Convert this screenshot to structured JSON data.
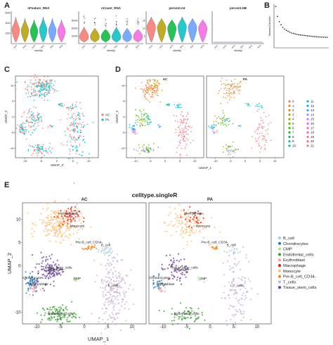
{
  "figure": {
    "panel_letters": [
      "A",
      "B",
      "C",
      "D",
      "E"
    ]
  },
  "chart_data": [
    {
      "panel": "A",
      "type": "violin",
      "subplots": [
        {
          "title": "nFeature_RNA",
          "xlabel": "Identity",
          "ylim": [
            0,
            6000
          ],
          "yticks": [
            "2000",
            "4000",
            "6000"
          ]
        },
        {
          "title": "nCount_RNA",
          "xlabel": "Identity",
          "ylim": [
            0,
            40000
          ],
          "yticks": [
            "10000",
            "20000",
            "30000"
          ]
        },
        {
          "title": "percent.mt",
          "xlabel": "Identity",
          "ylim": [
            0,
            20
          ],
          "yticks": [
            "5",
            "10",
            "15"
          ]
        },
        {
          "title": "percent.HB",
          "xlabel": "Identity",
          "ylim": [
            0,
            1
          ],
          "yticks": []
        }
      ],
      "categories": [
        "AC1",
        "AC2",
        "AC3",
        "PA1",
        "PA2",
        "PA3"
      ],
      "colors": [
        "#f8766d",
        "#b79f00",
        "#00ba38",
        "#00bfc4",
        "#619cff",
        "#f564e3"
      ]
    },
    {
      "panel": "B",
      "type": "scatter",
      "ylabel": "Standard Deviation",
      "x": [
        1,
        2,
        3,
        4,
        5,
        6,
        7,
        8,
        9,
        10,
        11,
        12,
        13,
        14,
        15,
        16,
        17,
        18,
        19,
        20,
        21,
        22,
        23,
        24,
        25,
        26,
        27,
        28,
        29,
        30
      ],
      "y": [
        9.5,
        7.2,
        6.0,
        5.3,
        4.7,
        4.3,
        4.0,
        3.8,
        3.6,
        3.4,
        3.3,
        3.2,
        3.1,
        3.0,
        2.95,
        2.9,
        2.85,
        2.8,
        2.75,
        2.7,
        2.66,
        2.62,
        2.58,
        2.55,
        2.52,
        2.5,
        2.47,
        2.45,
        2.43,
        2.41
      ]
    },
    {
      "panel": "C",
      "type": "scatter",
      "subtype": "umap",
      "xlabel": "UMAP_1",
      "ylabel": "UMAP_2",
      "xticks": [
        "-10",
        "-5",
        "0",
        "5",
        "10"
      ],
      "yticks": [
        "-10",
        "-5",
        "0",
        "5",
        "10"
      ],
      "xlim": [
        -13,
        13
      ],
      "ylim": [
        -13,
        13
      ],
      "legend_position": "right",
      "series": [
        {
          "name": "AC",
          "color": "#f8766d"
        },
        {
          "name": "PA",
          "color": "#00bfc4"
        }
      ]
    },
    {
      "panel": "D",
      "type": "scatter",
      "subtype": "umap",
      "facets": [
        "AC",
        "PA"
      ],
      "xlabel": "UMAP_1",
      "ylabel": "UMAP_2",
      "xticks": [
        "-10",
        "-5",
        "0",
        "5",
        "10"
      ],
      "yticks": [
        "-10",
        "-5",
        "0",
        "5",
        "10"
      ],
      "legend_position": "right",
      "series": [
        {
          "name": "0",
          "color": "#f8766d"
        },
        {
          "name": "1",
          "color": "#ea8331"
        },
        {
          "name": "2",
          "color": "#d89000"
        },
        {
          "name": "3",
          "color": "#c09b00"
        },
        {
          "name": "4",
          "color": "#a3a500"
        },
        {
          "name": "5",
          "color": "#7cae00"
        },
        {
          "name": "6",
          "color": "#39b600"
        },
        {
          "name": "7",
          "color": "#00bb4e"
        },
        {
          "name": "8",
          "color": "#00bf7d"
        },
        {
          "name": "9",
          "color": "#00c1a3"
        },
        {
          "name": "10",
          "color": "#00bfc4"
        },
        {
          "name": "11",
          "color": "#00bae0"
        },
        {
          "name": "12",
          "color": "#00b0f6"
        },
        {
          "name": "13",
          "color": "#35a2ff"
        },
        {
          "name": "14",
          "color": "#9590ff"
        },
        {
          "name": "15",
          "color": "#c77cff"
        },
        {
          "name": "16",
          "color": "#e76bf3"
        },
        {
          "name": "17",
          "color": "#fa62db"
        },
        {
          "name": "18",
          "color": "#ff62bc"
        },
        {
          "name": "19",
          "color": "#ff6a98"
        },
        {
          "name": "20",
          "color": "#f2746e"
        },
        {
          "name": "21",
          "color": "#e0807a"
        }
      ]
    },
    {
      "panel": "E",
      "type": "scatter",
      "subtype": "umap",
      "title": "celltype.singleR",
      "facets": [
        "AC",
        "PA"
      ],
      "xlabel": "UMAP_1",
      "ylabel": "UMAP_2",
      "xticks": [
        "-10",
        "-5",
        "0",
        "5",
        "10"
      ],
      "yticks": [
        "-10",
        "0",
        "5",
        "10"
      ],
      "legend_position": "right",
      "series": [
        {
          "name": "B_cell",
          "color": "#a6cee3"
        },
        {
          "name": "Chondrocytes",
          "color": "#1f78b4"
        },
        {
          "name": "CMP",
          "color": "#b2df8a"
        },
        {
          "name": "Endothelial_cells",
          "color": "#33a02c"
        },
        {
          "name": "Erythroblast",
          "color": "#fb9a99"
        },
        {
          "name": "Macrophage",
          "color": "#e31a1c"
        },
        {
          "name": "Monocyte",
          "color": "#fdbf6f"
        },
        {
          "name": "Pre-B_cell_CD34-",
          "color": "#ff7f00"
        },
        {
          "name": "T_cells",
          "color": "#cab2d6"
        },
        {
          "name": "Tissue_stem_cells",
          "color": "#6a3d9a"
        }
      ],
      "cluster_labels_AC": [
        "Macrophage",
        "Monocyte",
        "Pre-B_cell_CD34-",
        "B_cell",
        "Tissue_stem_cells",
        "Monocyte",
        "CMP",
        "Chondrocytes",
        "Erythroblast",
        "T_cells",
        "Endothelial_cells"
      ],
      "cluster_labels_PA": [
        "Macrophage",
        "Monocyte",
        "Pre-B_cell_CD34-",
        "B_cell",
        "Tissue_stem_cells",
        "Monocyte",
        "CMP",
        "Chondrocytes",
        "Erythroblast",
        "T_cells",
        "Endothelial_cells"
      ]
    }
  ]
}
